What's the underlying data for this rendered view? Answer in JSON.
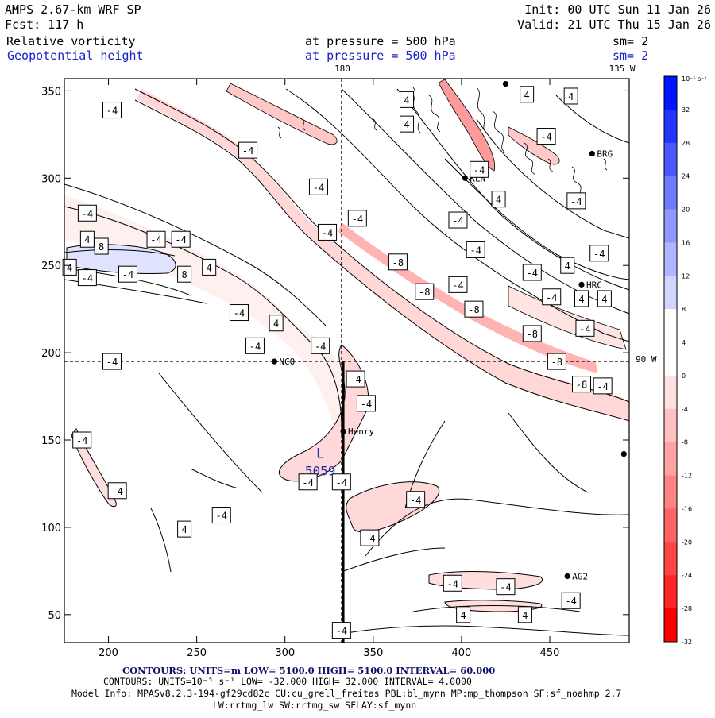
{
  "header": {
    "model_title": "AMPS 2.67-km WRF SP",
    "forecast": "Fcst:  117 h",
    "init": "Init: 00 UTC Sun 11 Jan 26",
    "valid": "Valid: 21 UTC Thu 15 Jan 26",
    "field1": {
      "name": "Relative vorticity",
      "level": "at pressure =  500 hPa",
      "smooth": "sm= 2"
    },
    "field2": {
      "name": "Geopotential height",
      "level": "at pressure =  500 hPa",
      "smooth": "sm= 2"
    }
  },
  "chart_data": {
    "type": "contour-map",
    "title": "Relative vorticity and geopotential height at 500 hPa",
    "x_axis": {
      "range": [
        175,
        495
      ],
      "ticks": [
        200,
        250,
        300,
        350,
        400,
        450
      ]
    },
    "y_axis": {
      "range": [
        34,
        357
      ],
      "ticks": [
        50,
        100,
        150,
        200,
        250,
        300,
        350
      ]
    },
    "meridian_labels": {
      "top_180": "180",
      "top_135w": "135 W",
      "right_90w": "90 W"
    },
    "dashed_lines": {
      "vertical_x": 332,
      "horizontal_y": 195
    },
    "cross_section_x": 333,
    "colorbar": {
      "unit": "10⁻⁵ s⁻¹",
      "labels": [
        "32",
        "28",
        "24",
        "20",
        "16",
        "12",
        "8",
        "4",
        "0",
        "-4",
        "-8",
        "-12",
        "-16",
        "-20",
        "-24",
        "-28",
        "-32"
      ],
      "colors": [
        "#0016ff",
        "#2434ff",
        "#4a58ff",
        "#6e7bff",
        "#9097ff",
        "#b0b6ff",
        "#d2d6ff",
        "#ffffff",
        "#ffffff",
        "#ffe0e0",
        "#ffc1c1",
        "#ffa2a2",
        "#ff8383",
        "#ff6464",
        "#ff4545",
        "#ff2626",
        "#ff0000"
      ]
    },
    "stations": [
      {
        "name": "NCO",
        "x": 294,
        "y": 195
      },
      {
        "name": "Henry",
        "x": 333,
        "y": 155
      },
      {
        "name": "KLN",
        "x": 402,
        "y": 300
      },
      {
        "name": "BRG",
        "x": 474,
        "y": 314
      },
      {
        "name": "HRC",
        "x": 468,
        "y": 239
      },
      {
        "name": "AG2",
        "x": 460,
        "y": 72
      },
      {
        "name": "",
        "x": 492,
        "y": 142
      },
      {
        "name": "",
        "x": 425,
        "y": 354
      }
    ],
    "low_center": {
      "symbol": "L",
      "value": "5059",
      "x": 320,
      "y": 147
    },
    "contour_labels": [
      {
        "t": "-4",
        "x": 202,
        "y": 339
      },
      {
        "t": "-4",
        "x": 279,
        "y": 316
      },
      {
        "t": "-4",
        "x": 319,
        "y": 295
      },
      {
        "t": "-4",
        "x": 341,
        "y": 277
      },
      {
        "t": "-4",
        "x": 324,
        "y": 269
      },
      {
        "t": "-4",
        "x": 188,
        "y": 280
      },
      {
        "t": "-4",
        "x": 227,
        "y": 265
      },
      {
        "t": "-4",
        "x": 241,
        "y": 265
      },
      {
        "t": "-4",
        "x": 188,
        "y": 243
      },
      {
        "t": "-4",
        "x": 211,
        "y": 245
      },
      {
        "t": "-4",
        "x": 274,
        "y": 223
      },
      {
        "t": "-4",
        "x": 320,
        "y": 204
      },
      {
        "t": "-4",
        "x": 283,
        "y": 204
      },
      {
        "t": "-4",
        "x": 202,
        "y": 195
      },
      {
        "t": "-4",
        "x": 340,
        "y": 185
      },
      {
        "t": "-4",
        "x": 346,
        "y": 171
      },
      {
        "t": "-4",
        "x": 185,
        "y": 150
      },
      {
        "t": "-4",
        "x": 205,
        "y": 121
      },
      {
        "t": "-4",
        "x": 313,
        "y": 126
      },
      {
        "t": "-4",
        "x": 332,
        "y": 126
      },
      {
        "t": "-4",
        "x": 264,
        "y": 107
      },
      {
        "t": "-4",
        "x": 374,
        "y": 116
      },
      {
        "t": "-4",
        "x": 348,
        "y": 94
      },
      {
        "t": "-4",
        "x": 332,
        "y": 41
      },
      {
        "t": "-4",
        "x": 395,
        "y": 68
      },
      {
        "t": "-4",
        "x": 425,
        "y": 66
      },
      {
        "t": "-4",
        "x": 462,
        "y": 58
      },
      {
        "t": "-4",
        "x": 448,
        "y": 324
      },
      {
        "t": "-4",
        "x": 410,
        "y": 305
      },
      {
        "t": "-4",
        "x": 398,
        "y": 276
      },
      {
        "t": "-4",
        "x": 465,
        "y": 287
      },
      {
        "t": "-4",
        "x": 408,
        "y": 259
      },
      {
        "t": "-4",
        "x": 440,
        "y": 246
      },
      {
        "t": "-4",
        "x": 398,
        "y": 239
      },
      {
        "t": "-4",
        "x": 451,
        "y": 232
      },
      {
        "t": "-4",
        "x": 478,
        "y": 257
      },
      {
        "t": "-4",
        "x": 470,
        "y": 214
      },
      {
        "t": "-4",
        "x": 480,
        "y": 181
      },
      {
        "t": "-8",
        "x": 364,
        "y": 252
      },
      {
        "t": "-8",
        "x": 379,
        "y": 235
      },
      {
        "t": "-8",
        "x": 407,
        "y": 225
      },
      {
        "t": "-8",
        "x": 440,
        "y": 211
      },
      {
        "t": "-8",
        "x": 454,
        "y": 195
      },
      {
        "t": "-8",
        "x": 468,
        "y": 182
      },
      {
        "t": "4",
        "x": 369,
        "y": 345
      },
      {
        "t": "4",
        "x": 369,
        "y": 331
      },
      {
        "t": "4",
        "x": 437,
        "y": 348
      },
      {
        "t": "4",
        "x": 462,
        "y": 347
      },
      {
        "t": "4",
        "x": 421,
        "y": 288
      },
      {
        "t": "4",
        "x": 460,
        "y": 250
      },
      {
        "t": "4",
        "x": 188,
        "y": 265
      },
      {
        "t": "4",
        "x": 178,
        "y": 249
      },
      {
        "t": "4",
        "x": 257,
        "y": 249
      },
      {
        "t": "4",
        "x": 295,
        "y": 217
      },
      {
        "t": "4",
        "x": 468,
        "y": 231
      },
      {
        "t": "4",
        "x": 481,
        "y": 231
      },
      {
        "t": "4",
        "x": 243,
        "y": 99
      },
      {
        "t": "4",
        "x": 401,
        "y": 50
      },
      {
        "t": "4",
        "x": 436,
        "y": 50
      },
      {
        "t": "8",
        "x": 196,
        "y": 261
      },
      {
        "t": "8",
        "x": 243,
        "y": 245
      }
    ],
    "footer": {
      "line1": "CONTOURS:  UNITS=m  LOW=  5100.0        HIGH=  5100.0        INTERVAL=   60.000",
      "line2": "CONTOURS:  UNITS=10⁻⁵ s⁻¹   LOW= -32.000       HIGH=  32.000       INTERVAL=   4.0000",
      "line3": "Model Info: MPASv8.2.3-194-gf29cd82c CU:cu_grell_freitas PBL:bl_mynn MP:mp_thompson SF:sf_noahmp 2.7",
      "line4": "LW:rrtmg_lw SW:rrtmg_sw SFLAY:sf_mynn"
    }
  }
}
